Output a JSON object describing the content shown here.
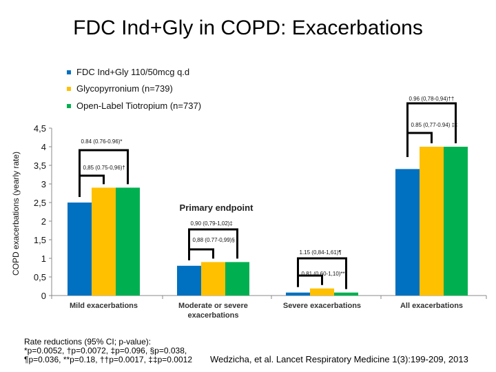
{
  "title": "FDC Ind+Gly in COPD: Exacerbations",
  "chart_data": {
    "type": "bar",
    "ylabel": "COPD exacerbations (yearly rate)",
    "ylim": [
      0,
      4.5
    ],
    "yticks": [
      "0",
      "0,5",
      "1",
      "1,5",
      "2",
      "2,5",
      "3",
      "3,5",
      "4",
      "4,5"
    ],
    "categories": [
      "Mild exacerbations",
      "Moderate or severe exacerbations",
      "Severe exacerbations",
      "All exacerbations"
    ],
    "series": [
      {
        "name": "FDC Ind+Gly 110/50mcg q.d",
        "color": "#0070c0",
        "values": [
          2.5,
          0.8,
          0.08,
          3.4
        ]
      },
      {
        "name": "Glycopyrronium (n=739)",
        "color": "#ffc000",
        "values": [
          2.9,
          0.9,
          0.19,
          4.0
        ]
      },
      {
        "name": "Open-Label Tiotropium (n=737)",
        "color": "#00b050",
        "values": [
          2.9,
          0.9,
          0.08,
          4.0
        ]
      }
    ],
    "annotations": [
      {
        "outer": "0.84 (0.76-0.96)*",
        "inner": "0,85 (0.75-0,96)†"
      },
      {
        "outer": "0,90 (0,79-1,02)‡",
        "inner": "0,88 (0.77-0,99)§"
      },
      {
        "outer": "1.15 (0,84-1,61)¶",
        "inner": "0.81 (0,60-1,10)**"
      },
      {
        "outer": "0.96 (0,78-0,94)††",
        "inner": "0.85 (0,77-0.94) ‡‡"
      }
    ],
    "callout": "Primary endpoint"
  },
  "footnote": [
    "Rate reductions (95% CI; p-value):",
    "*p=0.0052, †p=0.0072, ‡p=0.096, §p=0.038,",
    "¶p=0.036, **p=0.18, ††p=0.0017, ‡‡p=0.0012"
  ],
  "citation": "Wedzicha, et al. Lancet Respiratory Medicine 1(3):199-209, 2013"
}
